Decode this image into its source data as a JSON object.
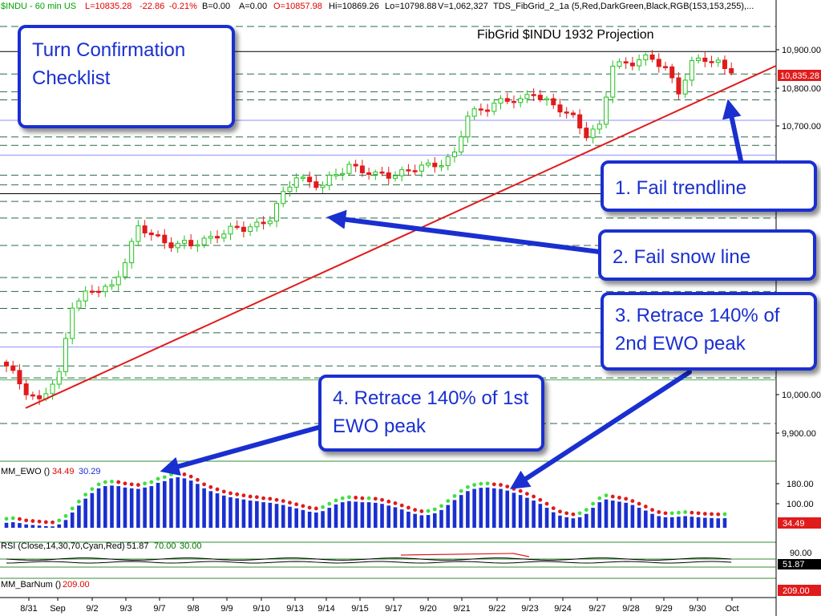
{
  "header": {
    "symbol": "$INDU - 60 min  US",
    "last": "L=10835.28",
    "change": "-22.86",
    "change_pct": "-0.21%",
    "bid": "B=0.00",
    "ask": "A=0.00",
    "open": "O=10857.98",
    "high": "Hi=10869.26",
    "low": "Lo=10798.88",
    "volume": "V=1,062,327",
    "study": "TDS_FibGrid_2_1a (5,Red,DarkGreen,Black,RGB(153,153,255),..."
  },
  "chart_title": "FibGrid $INDU 1932 Projection",
  "callouts": {
    "checklist": "Turn Confirmation Checklist",
    "c1": "1. Fail trendline",
    "c2": "2. Fail snow line",
    "c3": "3. Retrace 140% of 2nd EWO peak",
    "c4": "4. Retrace 140% of 1st EWO peak"
  },
  "panels": {
    "ewo": {
      "label": "MM_EWO ()",
      "v1": "34.49",
      "v2": "30.29",
      "badge": "34.49"
    },
    "rsi": {
      "label": "RSI (Close,14,30,70,Cyan,Red)",
      "v1": "51.87",
      "v2": "70.00",
      "v3": "30.00",
      "badge": "51.87"
    },
    "barnum": {
      "label": "MM_BarNum ()",
      "v1": "209.00",
      "badge": "209.00"
    }
  },
  "price_badge": "10,835.28",
  "colors": {
    "up": "#22c21b",
    "down": "#e01b1b",
    "trend": "#e01b1b",
    "callout": "#1a2fd0",
    "ewo_bar": "#1a2fd0",
    "header_red": "#e00000",
    "header_green": "#00a000"
  },
  "chart_data": {
    "type": "candlestick",
    "title": "FibGrid $INDU 1932 Projection",
    "x_ticks": [
      "8/31",
      "Sep",
      "9/2",
      "9/3",
      "9/7",
      "9/8",
      "9/9",
      "9/10",
      "9/13",
      "9/14",
      "9/15",
      "9/17",
      "9/20",
      "9/21",
      "9/22",
      "9/23",
      "9/24",
      "9/27",
      "9/28",
      "9/29",
      "9/30",
      "Oct"
    ],
    "y_ticks": [
      "10,900.00",
      "10,800.00",
      "10,700.00",
      "10,000.00",
      "9,900.00"
    ],
    "ewo_ticks": [
      "180.00",
      "100.00"
    ],
    "rsi_ticks": [
      "90.00"
    ],
    "ylim": [
      9865,
      10985
    ],
    "fib_levels_solid": [
      10890,
      10522
    ],
    "fib_levels_dashed": [
      10955,
      10832,
      10786,
      10765,
      10669,
      10647,
      10570,
      10545,
      10502,
      10459,
      10388,
      10305,
      10269,
      10225,
      10162,
      10076,
      10045,
      9927
    ],
    "fib_levels_blue": [
      10712,
      10622,
      10125
    ],
    "fib_levels_green": [
      10040
    ],
    "trendline": [
      [
        0,
        9942
      ],
      [
        110,
        10805
      ]
    ],
    "close_keypoints": [
      [
        0,
        10070
      ],
      [
        3,
        10015
      ],
      [
        5,
        9985
      ],
      [
        8,
        10050
      ],
      [
        10,
        10240
      ],
      [
        12,
        10262
      ],
      [
        16,
        10280
      ],
      [
        20,
        10430
      ],
      [
        24,
        10400
      ],
      [
        28,
        10385
      ],
      [
        32,
        10420
      ],
      [
        36,
        10430
      ],
      [
        40,
        10460
      ],
      [
        44,
        10570
      ],
      [
        48,
        10540
      ],
      [
        52,
        10600
      ],
      [
        56,
        10565
      ],
      [
        60,
        10580
      ],
      [
        64,
        10590
      ],
      [
        68,
        10625
      ],
      [
        70,
        10720
      ],
      [
        74,
        10760
      ],
      [
        78,
        10760
      ],
      [
        80,
        10790
      ],
      [
        83,
        10745
      ],
      [
        86,
        10720
      ],
      [
        88,
        10680
      ],
      [
        90,
        10690
      ],
      [
        92,
        10855
      ],
      [
        96,
        10870
      ],
      [
        98,
        10865
      ],
      [
        100,
        10850
      ],
      [
        102,
        10790
      ],
      [
        104,
        10855
      ],
      [
        106,
        10870
      ],
      [
        108,
        10865
      ],
      [
        110,
        10835
      ]
    ],
    "ewo_values": [
      18,
      20,
      17,
      12,
      10,
      8,
      6,
      5,
      12,
      28,
      55,
      80,
      105,
      125,
      142,
      150,
      152,
      150,
      145,
      142,
      140,
      145,
      150,
      162,
      168,
      178,
      182,
      178,
      170,
      158,
      142,
      132,
      124,
      116,
      110,
      106,
      102,
      98,
      96,
      92,
      90,
      86,
      82,
      76,
      70,
      64,
      58,
      55,
      60,
      72,
      84,
      92,
      96,
      94,
      92,
      92,
      90,
      86,
      80,
      74,
      66,
      58,
      50,
      45,
      46,
      52,
      64,
      82,
      100,
      118,
      132,
      140,
      144,
      145,
      142,
      140,
      134,
      126,
      118,
      108,
      98,
      86,
      72,
      56,
      44,
      38,
      34,
      38,
      50,
      72,
      92,
      102,
      98,
      94,
      90,
      82,
      72,
      62,
      50,
      42,
      38,
      38,
      40,
      42,
      40,
      38,
      36,
      35,
      34,
      34.49
    ]
  }
}
